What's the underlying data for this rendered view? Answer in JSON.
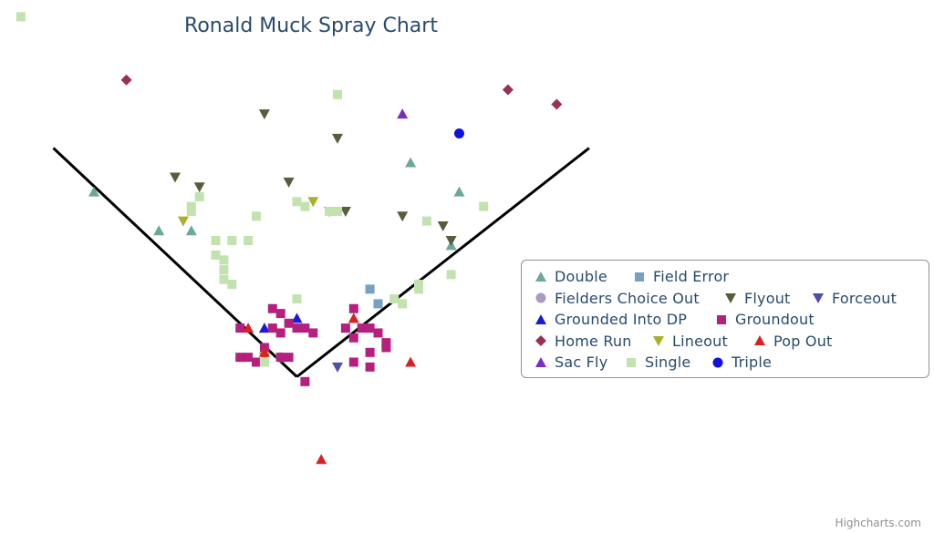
{
  "credits": "Highcharts.com",
  "chart_data": {
    "type": "scatter",
    "title": "Ronald Muck Spray Chart",
    "grid": false,
    "legend_position": "right",
    "xlim": [
      0,
      100
    ],
    "ylim": [
      0,
      100
    ],
    "field_lines": [
      {
        "name": "left-foul-line",
        "points": [
          [
            5,
            72
          ],
          [
            35,
            25
          ]
        ]
      },
      {
        "name": "right-foul-line",
        "points": [
          [
            35,
            25
          ],
          [
            71,
            72
          ]
        ]
      }
    ],
    "series": [
      {
        "name": "Double",
        "color": "#6aa89a",
        "symbol": "triangle",
        "points": [
          [
            10,
            63
          ],
          [
            18,
            55
          ],
          [
            22,
            55
          ],
          [
            49,
            69
          ],
          [
            55,
            63
          ],
          [
            54,
            52
          ]
        ]
      },
      {
        "name": "Field Error",
        "color": "#77a1c0",
        "symbol": "square",
        "points": [
          [
            44,
            43
          ],
          [
            45,
            40
          ]
        ]
      },
      {
        "name": "Fielders Choice Out",
        "color": "#aa99c0",
        "symbol": "circle",
        "points": [
          [
            33,
            29
          ]
        ]
      },
      {
        "name": "Flyout",
        "color": "#555e3d",
        "symbol": "triangle-down",
        "points": [
          [
            31,
            79
          ],
          [
            20,
            66
          ],
          [
            23,
            64
          ],
          [
            34,
            65
          ],
          [
            40,
            74
          ],
          [
            39,
            59
          ],
          [
            41,
            59
          ],
          [
            48,
            58
          ],
          [
            53,
            56
          ],
          [
            54,
            53
          ]
        ]
      },
      {
        "name": "Forceout",
        "color": "#4f4fa8",
        "symbol": "triangle-down",
        "points": [
          [
            40,
            27
          ]
        ]
      },
      {
        "name": "Grounded Into DP",
        "color": "#1a1ad8",
        "symbol": "triangle",
        "points": [
          [
            31,
            35
          ],
          [
            35,
            37
          ]
        ]
      },
      {
        "name": "Groundout",
        "color": "#b5207e",
        "symbol": "square",
        "points": [
          [
            28,
            35
          ],
          [
            32,
            39
          ],
          [
            33,
            38
          ],
          [
            32,
            35
          ],
          [
            33,
            34
          ],
          [
            34,
            36
          ],
          [
            35,
            35
          ],
          [
            36,
            35
          ],
          [
            37,
            34
          ],
          [
            28,
            29
          ],
          [
            29,
            29
          ],
          [
            30,
            28
          ],
          [
            31,
            31
          ],
          [
            33,
            29
          ],
          [
            34,
            29
          ],
          [
            42,
            39
          ],
          [
            41,
            35
          ],
          [
            42,
            33
          ],
          [
            43,
            35
          ],
          [
            44,
            35
          ],
          [
            45,
            34
          ],
          [
            46,
            32
          ],
          [
            42,
            28
          ],
          [
            44,
            27
          ],
          [
            44,
            30
          ],
          [
            46,
            31
          ],
          [
            36,
            24
          ]
        ]
      },
      {
        "name": "Home Run",
        "color": "#9b3051",
        "symbol": "diamond",
        "points": [
          [
            14,
            86
          ],
          [
            61,
            84
          ],
          [
            67,
            81
          ]
        ]
      },
      {
        "name": "Lineout",
        "color": "#aab02a",
        "symbol": "triangle-down",
        "points": [
          [
            21,
            57
          ],
          [
            37,
            61
          ],
          [
            31,
            29
          ]
        ]
      },
      {
        "name": "Pop Out",
        "color": "#d82222",
        "symbol": "triangle",
        "points": [
          [
            29,
            35
          ],
          [
            31,
            30
          ],
          [
            42,
            37
          ],
          [
            49,
            28
          ],
          [
            38,
            8
          ]
        ]
      },
      {
        "name": "Sac Fly",
        "color": "#7a2ec0",
        "symbol": "triangle",
        "points": [
          [
            48,
            79
          ]
        ]
      },
      {
        "name": "Single",
        "color": "#c2e2b0",
        "symbol": "square",
        "points": [
          [
            1,
            99
          ],
          [
            40,
            83
          ],
          [
            23,
            62
          ],
          [
            22,
            60
          ],
          [
            22,
            59
          ],
          [
            30,
            58
          ],
          [
            35,
            61
          ],
          [
            36,
            60
          ],
          [
            39,
            59
          ],
          [
            40,
            59
          ],
          [
            58,
            60
          ],
          [
            51,
            57
          ],
          [
            25,
            53
          ],
          [
            27,
            53
          ],
          [
            29,
            53
          ],
          [
            25,
            50
          ],
          [
            26,
            49
          ],
          [
            26,
            47
          ],
          [
            26,
            45
          ],
          [
            27,
            44
          ],
          [
            35,
            41
          ],
          [
            47,
            41
          ],
          [
            48,
            40
          ],
          [
            50,
            44
          ],
          [
            50,
            43
          ],
          [
            54,
            46
          ],
          [
            31,
            28
          ]
        ]
      },
      {
        "name": "Triple",
        "color": "#1010e0",
        "symbol": "circle",
        "points": [
          [
            55,
            75
          ]
        ]
      }
    ]
  }
}
